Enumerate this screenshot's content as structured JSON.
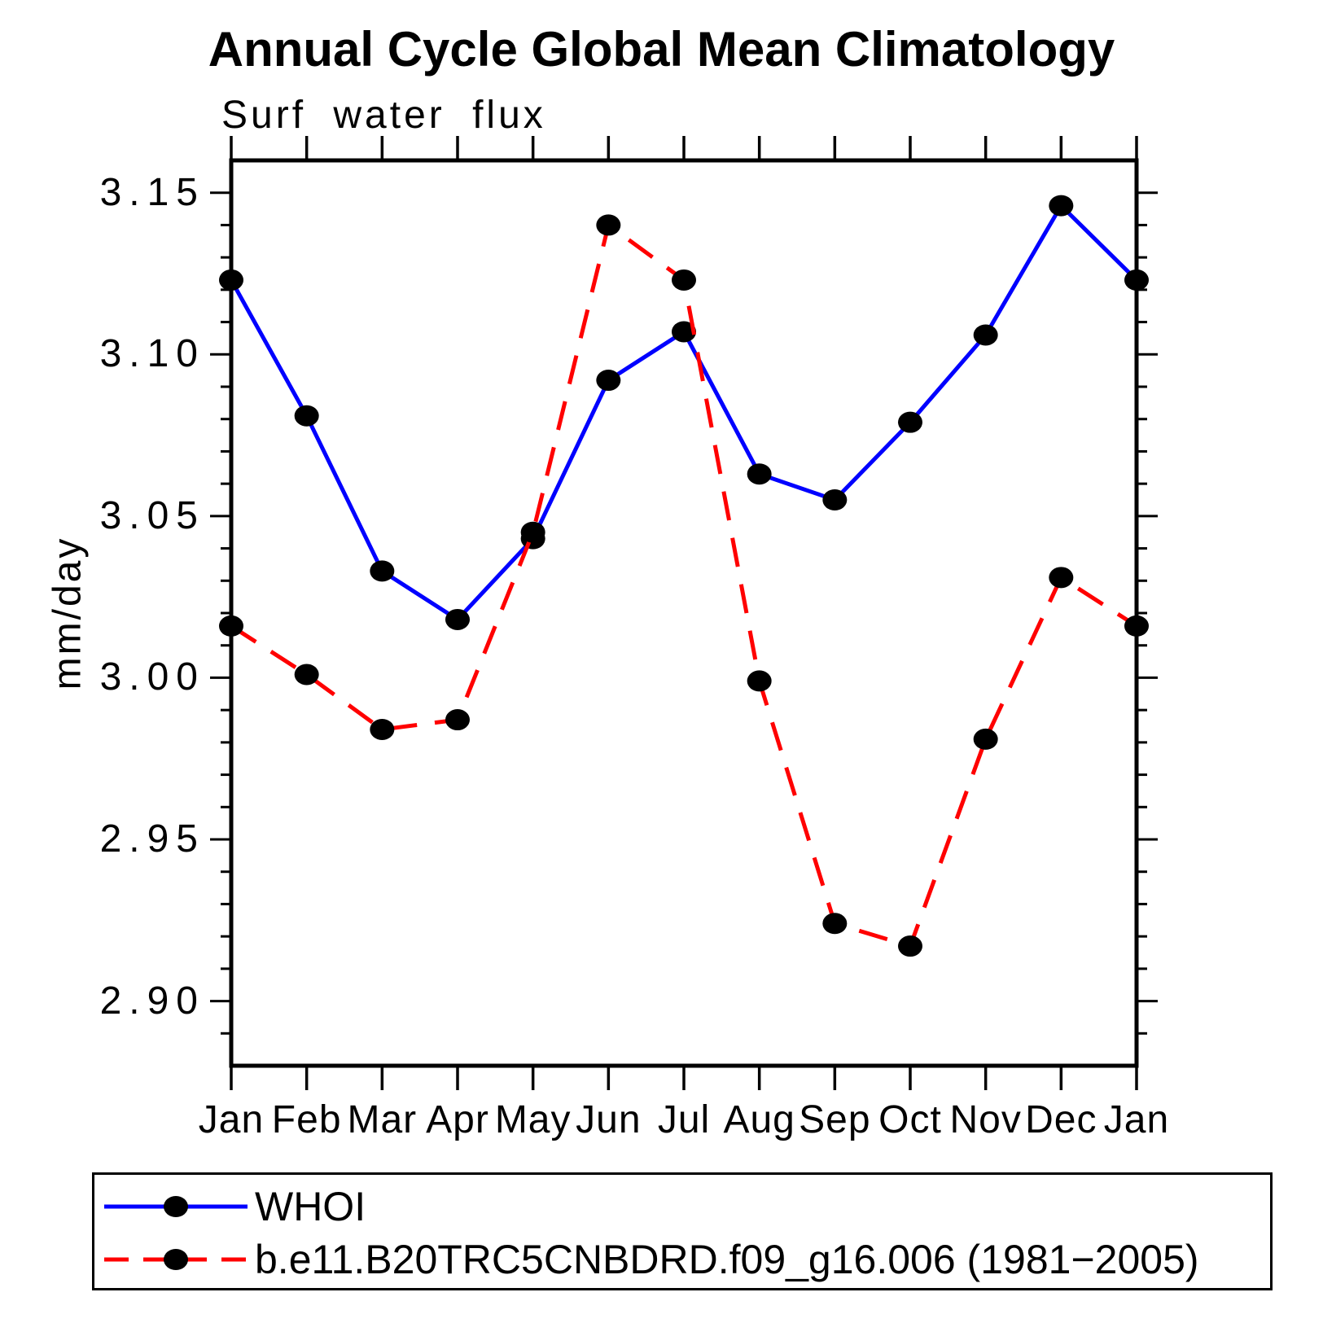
{
  "page": {
    "background": "#ffffff"
  },
  "title": "Annual Cycle Global Mean Climatology",
  "subtitle": "Surf water flux",
  "y_axis": {
    "label": "mm/day",
    "tick_labels": [
      "3.15",
      "3.10",
      "3.05",
      "3.00",
      "2.95",
      "2.90"
    ]
  },
  "x_axis": {
    "tick_labels": [
      "Jan",
      "Feb",
      "Mar",
      "Apr",
      "May",
      "Jun",
      "Jul",
      "Aug",
      "Sep",
      "Oct",
      "Nov",
      "Dec",
      "Jan"
    ]
  },
  "legend": {
    "entries": [
      {
        "label": "WHOI",
        "color": "#0000ff",
        "line_style": "solid",
        "marker": "filled-circle",
        "marker_color": "#000000"
      },
      {
        "label": "b.e11.B20TRC5CNBDRD.f09_g16.006 (1981−2005)",
        "color": "#ff0000",
        "line_style": "dashed",
        "marker": "filled-circle",
        "marker_color": "#000000"
      }
    ]
  },
  "chart_data": {
    "type": "line",
    "title": "Annual Cycle Global Mean Climatology",
    "subtitle": "Surf water flux",
    "xlabel": "",
    "ylabel": "mm/day",
    "categories": [
      "Jan",
      "Feb",
      "Mar",
      "Apr",
      "May",
      "Jun",
      "Jul",
      "Aug",
      "Sep",
      "Oct",
      "Nov",
      "Dec",
      "Jan"
    ],
    "series": [
      {
        "name": "WHOI",
        "color": "#0000ff",
        "line_style": "solid",
        "marker": "filled-circle",
        "marker_color": "#000000",
        "values": [
          3.123,
          3.081,
          3.033,
          3.018,
          3.043,
          3.092,
          3.107,
          3.063,
          3.055,
          3.079,
          3.106,
          3.146,
          3.123
        ]
      },
      {
        "name": "b.e11.B20TRC5CNBDRD.f09_g16.006 (1981−2005)",
        "color": "#ff0000",
        "line_style": "dashed",
        "marker": "filled-circle",
        "marker_color": "#000000",
        "values": [
          3.016,
          3.001,
          2.984,
          2.987,
          3.045,
          3.14,
          3.123,
          2.999,
          2.924,
          2.917,
          2.981,
          3.031,
          3.016
        ]
      }
    ],
    "ylim": [
      2.88,
      3.16
    ],
    "ytick_major": 0.05,
    "ytick_minor": 0.01,
    "grid": false,
    "tick_direction": "out",
    "legend_position": "bottom-left-box"
  }
}
